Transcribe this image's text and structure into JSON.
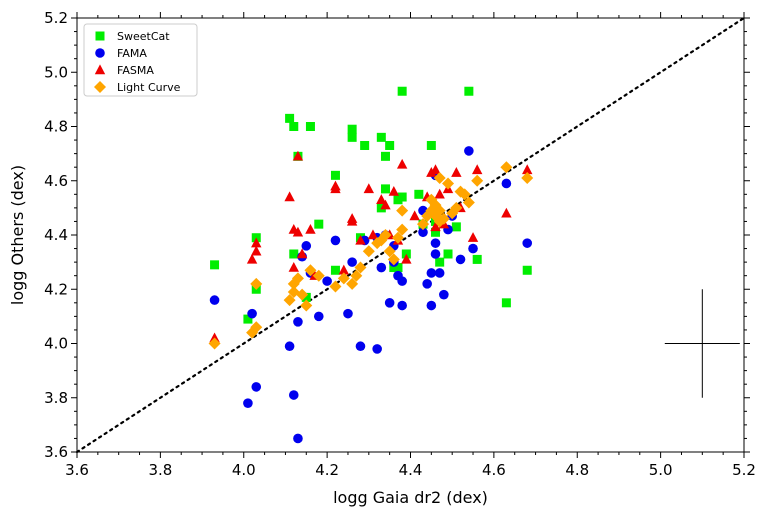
{
  "chart_data": {
    "type": "scatter",
    "xlabel": "logg Gaia dr2 (dex)",
    "ylabel": "logg Others (dex)",
    "xlim": [
      3.6,
      5.2
    ],
    "ylim": [
      3.6,
      5.2
    ],
    "xticks": [
      "3.6",
      "3.8",
      "4.0",
      "4.2",
      "4.4",
      "4.6",
      "4.8",
      "5.0",
      "5.2"
    ],
    "yticks": [
      "3.6",
      "3.8",
      "4.0",
      "4.2",
      "4.4",
      "4.6",
      "4.8",
      "5.0",
      "5.2"
    ],
    "grid": false,
    "legend_position": "top-left",
    "reference_line": {
      "style": "dotted",
      "from": [
        3.6,
        3.6
      ],
      "to": [
        5.2,
        5.2
      ]
    },
    "error_bar": {
      "x": 5.1,
      "y": 4.0,
      "x_error": 0.09,
      "y_error": 0.2
    },
    "series": [
      {
        "name": "SweetCat",
        "marker": "square",
        "color": "#00ee00",
        "x": [
          3.93,
          4.01,
          4.03,
          4.03,
          4.11,
          4.12,
          4.13,
          4.12,
          4.15,
          4.16,
          4.18,
          4.22,
          4.22,
          4.26,
          4.26,
          4.28,
          4.29,
          4.33,
          4.33,
          4.34,
          4.35,
          4.34,
          4.37,
          4.38,
          4.36,
          4.37,
          4.39,
          4.38,
          4.43,
          4.45,
          4.46,
          4.47,
          4.49,
          4.51,
          4.54,
          4.56,
          4.63,
          4.68,
          4.46,
          4.42
        ],
        "y": [
          4.29,
          4.09,
          4.39,
          4.2,
          4.83,
          4.8,
          4.69,
          4.33,
          4.17,
          4.8,
          4.44,
          4.62,
          4.27,
          4.79,
          4.76,
          4.39,
          4.73,
          4.76,
          4.5,
          4.69,
          4.73,
          4.57,
          4.28,
          4.93,
          4.28,
          4.53,
          4.33,
          4.54,
          4.44,
          4.73,
          4.41,
          4.3,
          4.33,
          4.43,
          4.93,
          4.31,
          4.15,
          4.27,
          4.45,
          4.55
        ]
      },
      {
        "name": "FAMA",
        "marker": "circle",
        "color": "#0000ee",
        "x": [
          3.93,
          4.01,
          4.02,
          4.03,
          4.11,
          4.12,
          4.13,
          4.13,
          4.14,
          4.15,
          4.16,
          4.18,
          4.2,
          4.22,
          4.25,
          4.26,
          4.28,
          4.29,
          4.32,
          4.32,
          4.33,
          4.34,
          4.35,
          4.36,
          4.36,
          4.37,
          4.38,
          4.38,
          4.43,
          4.44,
          4.45,
          4.45,
          4.46,
          4.46,
          4.47,
          4.48,
          4.49,
          4.5,
          4.52,
          4.54,
          4.55,
          4.63,
          4.68,
          4.46,
          4.43
        ],
        "y": [
          4.16,
          3.78,
          4.11,
          3.84,
          3.99,
          3.81,
          3.65,
          4.08,
          4.32,
          4.36,
          4.26,
          4.1,
          4.23,
          4.38,
          4.11,
          4.3,
          3.99,
          4.38,
          4.39,
          3.98,
          4.28,
          4.4,
          4.15,
          4.36,
          4.3,
          4.25,
          4.23,
          4.14,
          4.49,
          4.22,
          4.26,
          4.14,
          4.37,
          4.33,
          4.26,
          4.18,
          4.42,
          4.47,
          4.31,
          4.71,
          4.35,
          4.59,
          4.37,
          4.62,
          4.41
        ]
      },
      {
        "name": "FASMA",
        "marker": "triangle",
        "color": "#ee0000",
        "x": [
          3.93,
          4.02,
          4.03,
          4.03,
          4.11,
          4.12,
          4.13,
          4.12,
          4.13,
          4.14,
          4.16,
          4.17,
          4.22,
          4.22,
          4.24,
          4.26,
          4.26,
          4.28,
          4.3,
          4.31,
          4.33,
          4.34,
          4.35,
          4.36,
          4.37,
          4.38,
          4.39,
          4.41,
          4.44,
          4.45,
          4.46,
          4.47,
          4.48,
          4.49,
          4.51,
          4.52,
          4.55,
          4.56,
          4.63,
          4.68,
          4.46
        ],
        "y": [
          4.02,
          4.31,
          4.37,
          4.34,
          4.54,
          4.42,
          4.41,
          4.28,
          4.69,
          4.33,
          4.42,
          4.25,
          4.58,
          4.57,
          4.27,
          4.46,
          4.45,
          4.38,
          4.57,
          4.4,
          4.53,
          4.51,
          4.4,
          4.56,
          4.38,
          4.66,
          4.31,
          4.47,
          4.54,
          4.63,
          4.64,
          4.55,
          4.44,
          4.57,
          4.63,
          4.5,
          4.39,
          4.64,
          4.48,
          4.64,
          4.43
        ]
      },
      {
        "name": "Light Curve",
        "marker": "diamond",
        "color": "#ffa500",
        "x": [
          3.93,
          4.02,
          4.03,
          4.03,
          4.11,
          4.12,
          4.12,
          4.13,
          4.14,
          4.15,
          4.16,
          4.18,
          4.22,
          4.24,
          4.26,
          4.27,
          4.28,
          4.3,
          4.32,
          4.33,
          4.34,
          4.35,
          4.36,
          4.37,
          4.38,
          4.38,
          4.43,
          4.44,
          4.45,
          4.46,
          4.46,
          4.47,
          4.47,
          4.48,
          4.49,
          4.5,
          4.51,
          4.52,
          4.53,
          4.54,
          4.56,
          4.63,
          4.68,
          4.45,
          4.47
        ],
        "y": [
          4.0,
          4.04,
          4.22,
          4.06,
          4.16,
          4.19,
          4.22,
          4.24,
          4.18,
          4.14,
          4.27,
          4.25,
          4.21,
          4.24,
          4.22,
          4.25,
          4.28,
          4.34,
          4.37,
          4.38,
          4.4,
          4.34,
          4.31,
          4.39,
          4.42,
          4.49,
          4.44,
          4.47,
          4.53,
          4.51,
          4.47,
          4.61,
          4.49,
          4.46,
          4.59,
          4.48,
          4.5,
          4.56,
          4.55,
          4.52,
          4.6,
          4.65,
          4.61,
          4.49,
          4.45
        ]
      }
    ]
  }
}
